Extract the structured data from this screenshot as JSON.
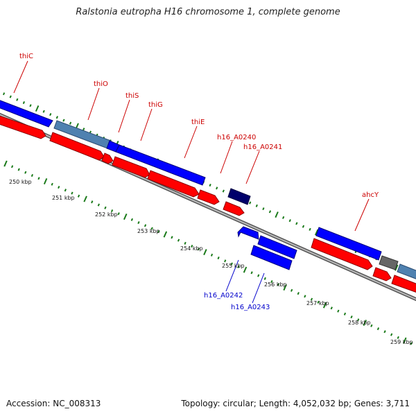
{
  "title": "Ralstonia eutropha H16 chromosome 1, complete genome",
  "footer": {
    "accession": "Accession: NC_008313",
    "stats": "Topology: circular; Length: 4,052,032 bp; Genes: 3,711"
  },
  "colors": {
    "forward_cds": "#0000ff",
    "forward_cds_selected": "#4f81b0",
    "reverse_cds": "#ff0000",
    "gene_dark": "#00006b",
    "gene_other": "#666666",
    "tick": "#1a7a1a",
    "backbone": "#999999",
    "label_top": "#cc0000",
    "label_bottom": "#0000cc"
  },
  "scale_labels": [
    "250 kbp",
    "251 kbp",
    "252 kbp",
    "253 kbp",
    "254 kbp",
    "255 kbp",
    "256 kbp",
    "257 kbp",
    "258 kbp",
    "259 kbp"
  ],
  "gene_labels_top": [
    "thiC",
    "thiO",
    "thiS",
    "thiG",
    "thiE",
    "h16_A0240",
    "h16_A0241",
    "ahcY"
  ],
  "gene_labels_bottom": [
    "h16_A0242",
    "h16_A0243"
  ]
}
